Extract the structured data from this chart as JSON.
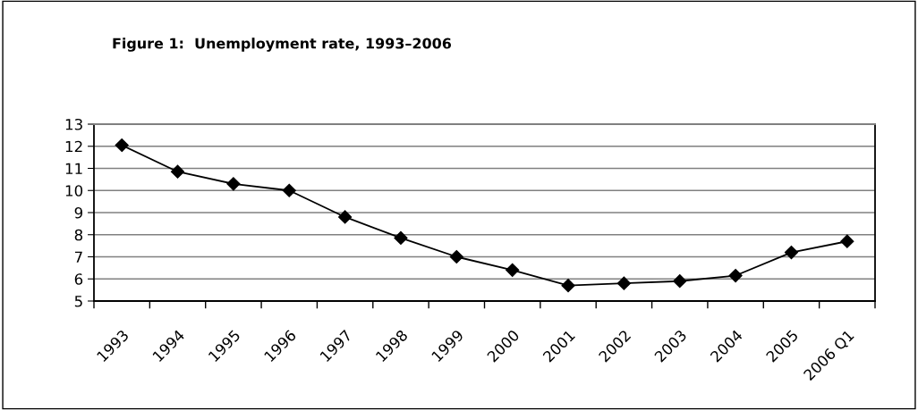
{
  "chart_data": {
    "type": "line",
    "title": "Figure 1:  Unemployment rate, 1993–2006",
    "categories": [
      "1993",
      "1994",
      "1995",
      "1996",
      "1997",
      "1998",
      "1999",
      "2000",
      "2001",
      "2002",
      "2003",
      "2004",
      "2005",
      "2006 Q1"
    ],
    "series": [
      {
        "color": "#000000",
        "values": [
          12.05,
          10.85,
          10.3,
          10.0,
          8.8,
          7.85,
          7.0,
          6.4,
          5.7,
          5.8,
          5.9,
          6.15,
          7.2,
          7.7
        ]
      }
    ],
    "ylim": [
      5,
      13
    ],
    "yticks": [
      5,
      6,
      7,
      8,
      9,
      10,
      11,
      12,
      13
    ],
    "grid": "y",
    "marker": "diamond",
    "line_style": "solid",
    "legend": false
  }
}
